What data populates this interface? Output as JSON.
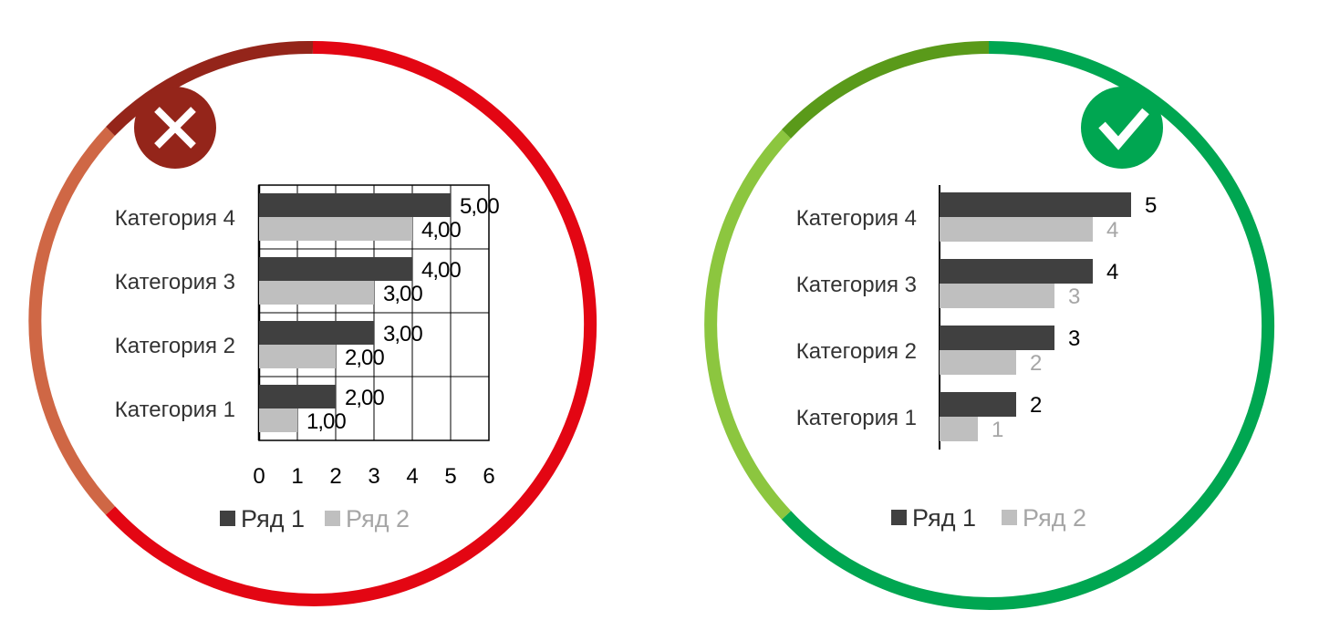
{
  "panels": {
    "bad": {
      "ring_colors": {
        "main": "#e30613",
        "dark": "#94251a",
        "muted": "#cf6745"
      },
      "badge_color": "#94251a",
      "badge_icon": "cross-icon",
      "legend": {
        "series1": "Ряд 1",
        "series2": "Ряд 2"
      }
    },
    "good": {
      "ring_colors": {
        "main": "#00a651",
        "dark": "#5a9a1a",
        "muted": "#8cc63f"
      },
      "badge_color": "#00a651",
      "badge_icon": "check-icon",
      "legend": {
        "series1": "Ряд 1",
        "series2": "Ряд 2"
      }
    }
  },
  "chart_data": [
    {
      "type": "bar",
      "orientation": "horizontal",
      "categories": [
        "Категория 1",
        "Категория 2",
        "Категория 3",
        "Категория 4"
      ],
      "series": [
        {
          "name": "Ряд 1",
          "values": [
            2,
            3,
            4,
            5
          ],
          "color": "#404040"
        },
        {
          "name": "Ряд 2",
          "values": [
            1,
            2,
            3,
            4
          ],
          "color": "#bfbfbf"
        }
      ],
      "data_labels": {
        "series1": [
          "2,00",
          "3,00",
          "4,00",
          "5,00"
        ],
        "series2": [
          "1,00",
          "2,00",
          "3,00",
          "4,00"
        ]
      },
      "xlim": [
        0,
        6
      ],
      "xticks": [
        "0",
        "1",
        "2",
        "3",
        "4",
        "5",
        "6"
      ],
      "grid": true,
      "legend": "bottom"
    },
    {
      "type": "bar",
      "orientation": "horizontal",
      "categories": [
        "Категория 1",
        "Категория 2",
        "Категория 3",
        "Категория 4"
      ],
      "series": [
        {
          "name": "Ряд 1",
          "values": [
            2,
            3,
            4,
            5
          ],
          "color": "#404040"
        },
        {
          "name": "Ряд 2",
          "values": [
            1,
            2,
            3,
            4
          ],
          "color": "#bfbfbf"
        }
      ],
      "data_labels": {
        "series1": [
          "2",
          "3",
          "4",
          "5"
        ],
        "series2": [
          "1",
          "2",
          "3",
          "4"
        ]
      },
      "grid": false,
      "axis_visible": false,
      "legend": "bottom"
    }
  ]
}
